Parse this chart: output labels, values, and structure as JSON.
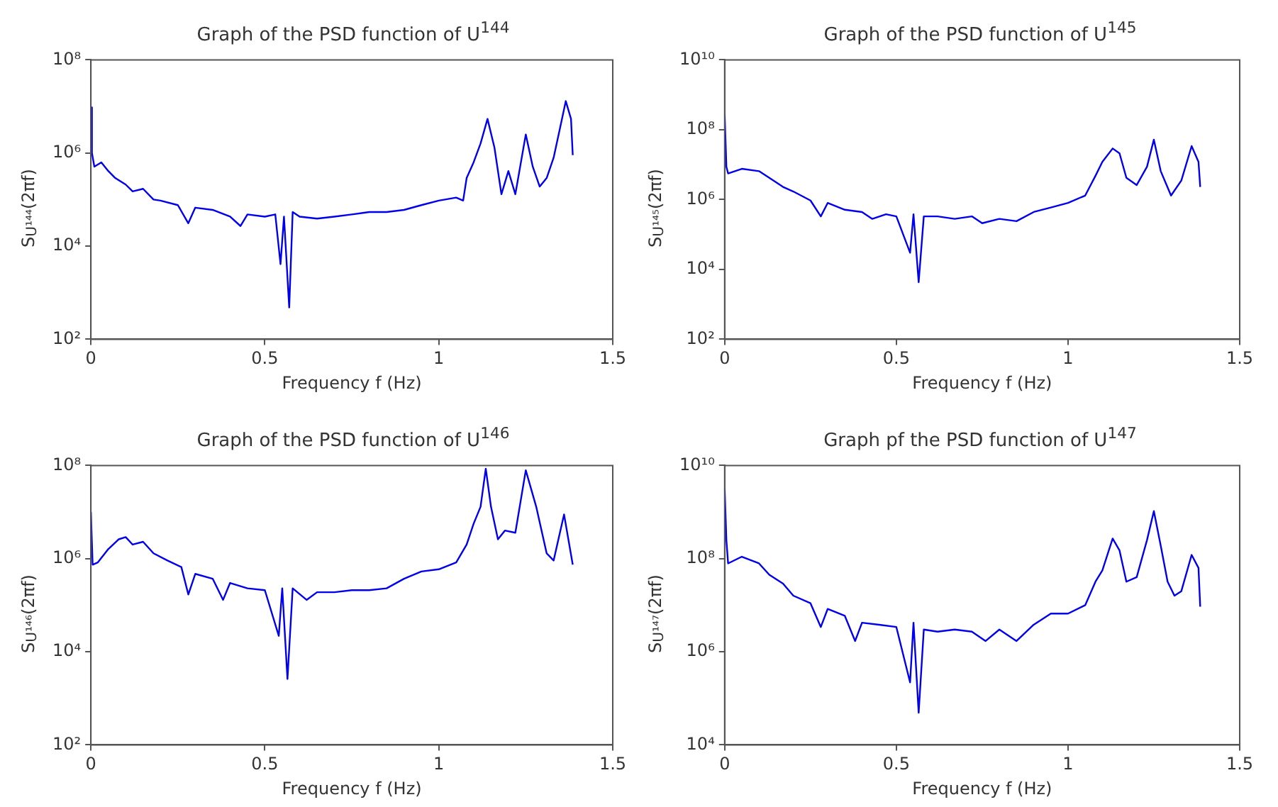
{
  "chart_data": [
    {
      "type": "line",
      "title": "Graph of the PSD function of U$^{144}$",
      "xlabel": "Frequency f (Hz)",
      "ylabel": "S$_{U¹⁴⁴}$(2πf)",
      "log": "y",
      "marker": "none",
      "xlim": [
        0,
        1.5
      ],
      "xticks": [
        0,
        0.5,
        1,
        1.5
      ],
      "ylim": [
        100,
        100000000
      ],
      "yticks": [
        {
          "value": 100,
          "label": "10²"
        },
        {
          "value": 10000,
          "label": "10⁴"
        },
        {
          "value": 1000000,
          "label": "10⁶"
        },
        {
          "value": 100000000,
          "label": "10⁸"
        }
      ],
      "x": [
        0,
        0.003,
        0.01,
        0.03,
        0.05,
        0.07,
        0.1,
        0.12,
        0.15,
        0.18,
        0.2,
        0.25,
        0.28,
        0.3,
        0.35,
        0.4,
        0.43,
        0.45,
        0.5,
        0.53,
        0.545,
        0.555,
        0.57,
        0.58,
        0.6,
        0.65,
        0.7,
        0.75,
        0.8,
        0.85,
        0.9,
        0.95,
        1.0,
        1.05,
        1.07,
        1.08,
        1.1,
        1.12,
        1.14,
        1.16,
        1.18,
        1.2,
        1.22,
        1.25,
        1.27,
        1.29,
        1.31,
        1.33,
        1.35,
        1.365,
        1.38,
        1.385
      ],
      "series": [
        {
          "color": "#0000ee",
          "values": [
            9500000,
            1000000,
            510000,
            630000,
            410000,
            290000,
            210000,
            150000,
            170000,
            100000,
            95000,
            76000,
            31000,
            67000,
            60000,
            43000,
            27000,
            48000,
            43000,
            48000,
            4100,
            43000,
            480,
            54000,
            43000,
            39000,
            43000,
            48000,
            54000,
            54000,
            60000,
            76000,
            95000,
            110000,
            95000,
            290000,
            630000,
            1600000,
            5400000,
            1300000,
            130000,
            410000,
            130000,
            2500000,
            510000,
            190000,
            290000,
            790000,
            3900000,
            13000000,
            5400000,
            900000
          ]
        }
      ]
    },
    {
      "type": "line",
      "title": "Graph of the PSD function of U$^{145}$",
      "xlabel": "Frequency f (Hz)",
      "ylabel": "S$_{U¹⁴⁵}$(2πf)",
      "log": "y",
      "marker": "none",
      "xlim": [
        0,
        1.5
      ],
      "xticks": [
        0,
        0.5,
        1,
        1.5
      ],
      "ylim": [
        100,
        10000000000
      ],
      "yticks": [
        {
          "value": 100,
          "label": "10²"
        },
        {
          "value": 10000,
          "label": "10⁴"
        },
        {
          "value": 1000000,
          "label": "10⁶"
        },
        {
          "value": 100000000,
          "label": "10⁸"
        },
        {
          "value": 10000000000,
          "label": "10¹⁰"
        }
      ],
      "x": [
        0,
        0.005,
        0.01,
        0.05,
        0.1,
        0.13,
        0.17,
        0.2,
        0.25,
        0.28,
        0.3,
        0.35,
        0.4,
        0.43,
        0.47,
        0.5,
        0.54,
        0.55,
        0.565,
        0.58,
        0.62,
        0.67,
        0.72,
        0.75,
        0.8,
        0.85,
        0.9,
        0.95,
        1.0,
        1.05,
        1.08,
        1.1,
        1.13,
        1.15,
        1.17,
        1.2,
        1.23,
        1.25,
        1.27,
        1.3,
        1.33,
        1.36,
        1.38,
        1.385
      ],
      "series": [
        {
          "color": "#0000ee",
          "values": [
            280000000,
            8700000,
            5600000,
            7600000,
            6500000,
            4200000,
            2300000,
            1700000,
            940000,
            330000,
            800000,
            510000,
            440000,
            280000,
            380000,
            330000,
            30000,
            380000,
            4300,
            330000,
            330000,
            280000,
            330000,
            210000,
            280000,
            240000,
            440000,
            590000,
            800000,
            1300000,
            4800000,
            12000000,
            29000000,
            21000000,
            4200000,
            2600000,
            8700000,
            52000000,
            6500000,
            1300000,
            3500000,
            34000000,
            12000000,
            2300000
          ]
        }
      ]
    },
    {
      "type": "line",
      "title": "Graph of the PSD function of U$^{146}$",
      "xlabel": "Frequency f (Hz)",
      "ylabel": "S$_{U¹⁴⁶}$(2πf)",
      "log": "y",
      "marker": "none",
      "xlim": [
        0,
        1.5
      ],
      "xticks": [
        0,
        0.5,
        1,
        1.5
      ],
      "ylim": [
        100,
        100000000
      ],
      "yticks": [
        {
          "value": 100,
          "label": "10²"
        },
        {
          "value": 10000,
          "label": "10⁴"
        },
        {
          "value": 1000000,
          "label": "10⁶"
        },
        {
          "value": 100000000,
          "label": "10⁸"
        }
      ],
      "x": [
        0,
        0.005,
        0.02,
        0.05,
        0.08,
        0.1,
        0.12,
        0.15,
        0.18,
        0.22,
        0.26,
        0.28,
        0.3,
        0.35,
        0.38,
        0.4,
        0.45,
        0.5,
        0.54,
        0.55,
        0.565,
        0.58,
        0.62,
        0.65,
        0.7,
        0.75,
        0.8,
        0.85,
        0.9,
        0.95,
        1.0,
        1.05,
        1.08,
        1.1,
        1.12,
        1.135,
        1.15,
        1.17,
        1.19,
        1.22,
        1.25,
        1.28,
        1.31,
        1.33,
        1.36,
        1.385
      ],
      "series": [
        {
          "color": "#0000ee",
          "values": [
            10000000,
            740000,
            830000,
            1600000,
            2600000,
            2900000,
            2000000,
            2300000,
            1300000,
            910000,
            660000,
            170000,
            470000,
            370000,
            130000,
            300000,
            230000,
            210000,
            22000,
            230000,
            2600,
            230000,
            130000,
            190000,
            190000,
            210000,
            210000,
            230000,
            370000,
            530000,
            590000,
            830000,
            2000000,
            5600000,
            13000000,
            85000000,
            13000000,
            2600000,
            4000000,
            3600000,
            79000000,
            13000000,
            1300000,
            910000,
            8900000,
            740000
          ]
        }
      ]
    },
    {
      "type": "line",
      "title": "Graph pf the PSD function of U$^{147}$",
      "xlabel": "Frequency f (Hz)",
      "ylabel": "S$_{U¹⁴⁷}$(2πf)",
      "log": "y",
      "marker": "none",
      "xlim": [
        0,
        1.5
      ],
      "xticks": [
        0,
        0.5,
        1,
        1.5
      ],
      "ylim": [
        10000,
        10000000000
      ],
      "yticks": [
        {
          "value": 10000,
          "label": "10⁴"
        },
        {
          "value": 1000000,
          "label": "10⁶"
        },
        {
          "value": 100000000,
          "label": "10⁸"
        },
        {
          "value": 10000000000,
          "label": "10¹⁰"
        }
      ],
      "x": [
        0,
        0.005,
        0.01,
        0.05,
        0.1,
        0.13,
        0.17,
        0.2,
        0.25,
        0.28,
        0.3,
        0.35,
        0.38,
        0.4,
        0.45,
        0.5,
        0.54,
        0.55,
        0.565,
        0.58,
        0.62,
        0.67,
        0.72,
        0.76,
        0.8,
        0.85,
        0.9,
        0.95,
        1.0,
        1.05,
        1.08,
        1.1,
        1.13,
        1.15,
        1.17,
        1.2,
        1.23,
        1.25,
        1.27,
        1.29,
        1.31,
        1.33,
        1.36,
        1.38,
        1.385
      ],
      "series": [
        {
          "color": "#0000ee",
          "values": [
            3200000000,
            250000000,
            79000000,
            110000000,
            79000000,
            45000000,
            29000000,
            16000000,
            11000000,
            3400000,
            8300000,
            5900000,
            1700000,
            4200000,
            3800000,
            3400000,
            220000,
            4200000,
            49000,
            3000000,
            2700000,
            3000000,
            2700000,
            1700000,
            3000000,
            1700000,
            3800000,
            6600000,
            6600000,
            10000000,
            32000000,
            56000000,
            270000000,
            150000000,
            32000000,
            40000000,
            250000000,
            1050000000,
            190000000,
            32000000,
            16000000,
            20000000,
            120000000,
            63000000,
            9300000
          ]
        }
      ]
    }
  ]
}
